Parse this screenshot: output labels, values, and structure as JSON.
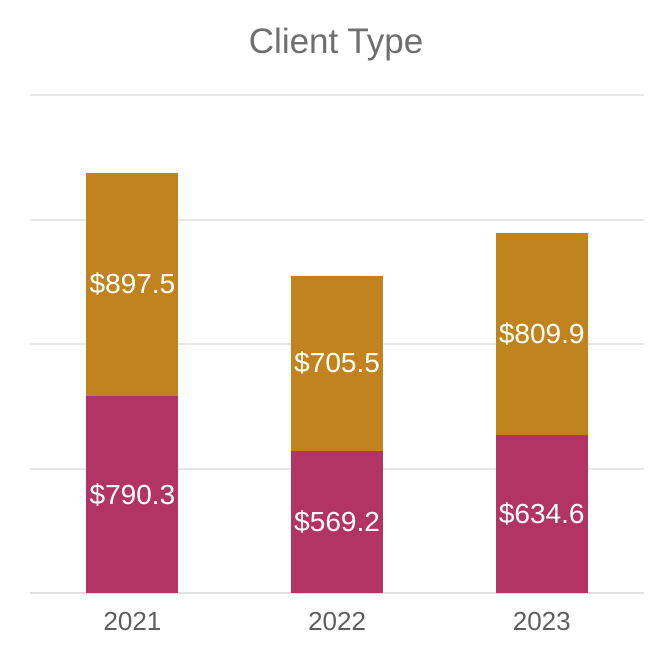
{
  "chart_data": {
    "type": "bar",
    "stacked": true,
    "title": "Client Type",
    "categories": [
      "2021",
      "2022",
      "2023"
    ],
    "series": [
      {
        "color": "#B13464",
        "values": [
          790.3,
          569.2,
          634.6
        ],
        "labels": [
          "$790.3",
          "$569.2",
          "$634.6"
        ]
      },
      {
        "color": "#C0831D",
        "values": [
          897.5,
          705.5,
          809.9
        ],
        "labels": [
          "$897.5",
          "$705.5",
          "$809.9"
        ]
      }
    ],
    "totals": [
      1687.8,
      1274.7,
      1444.5
    ],
    "ylim": [
      0,
      2000
    ],
    "gridlines": [
      0,
      500,
      1000,
      1500,
      2000
    ],
    "xlabel": "",
    "ylabel": "",
    "legend": "none",
    "grid_on": true,
    "colors": {
      "grid": "#e7e7e7",
      "axis_line": "#e0e0e0",
      "title_text": "#6f6f6f",
      "tick_text": "#5e5e5e",
      "value_label_text": "#ffffff",
      "background": "#ffffff"
    }
  }
}
